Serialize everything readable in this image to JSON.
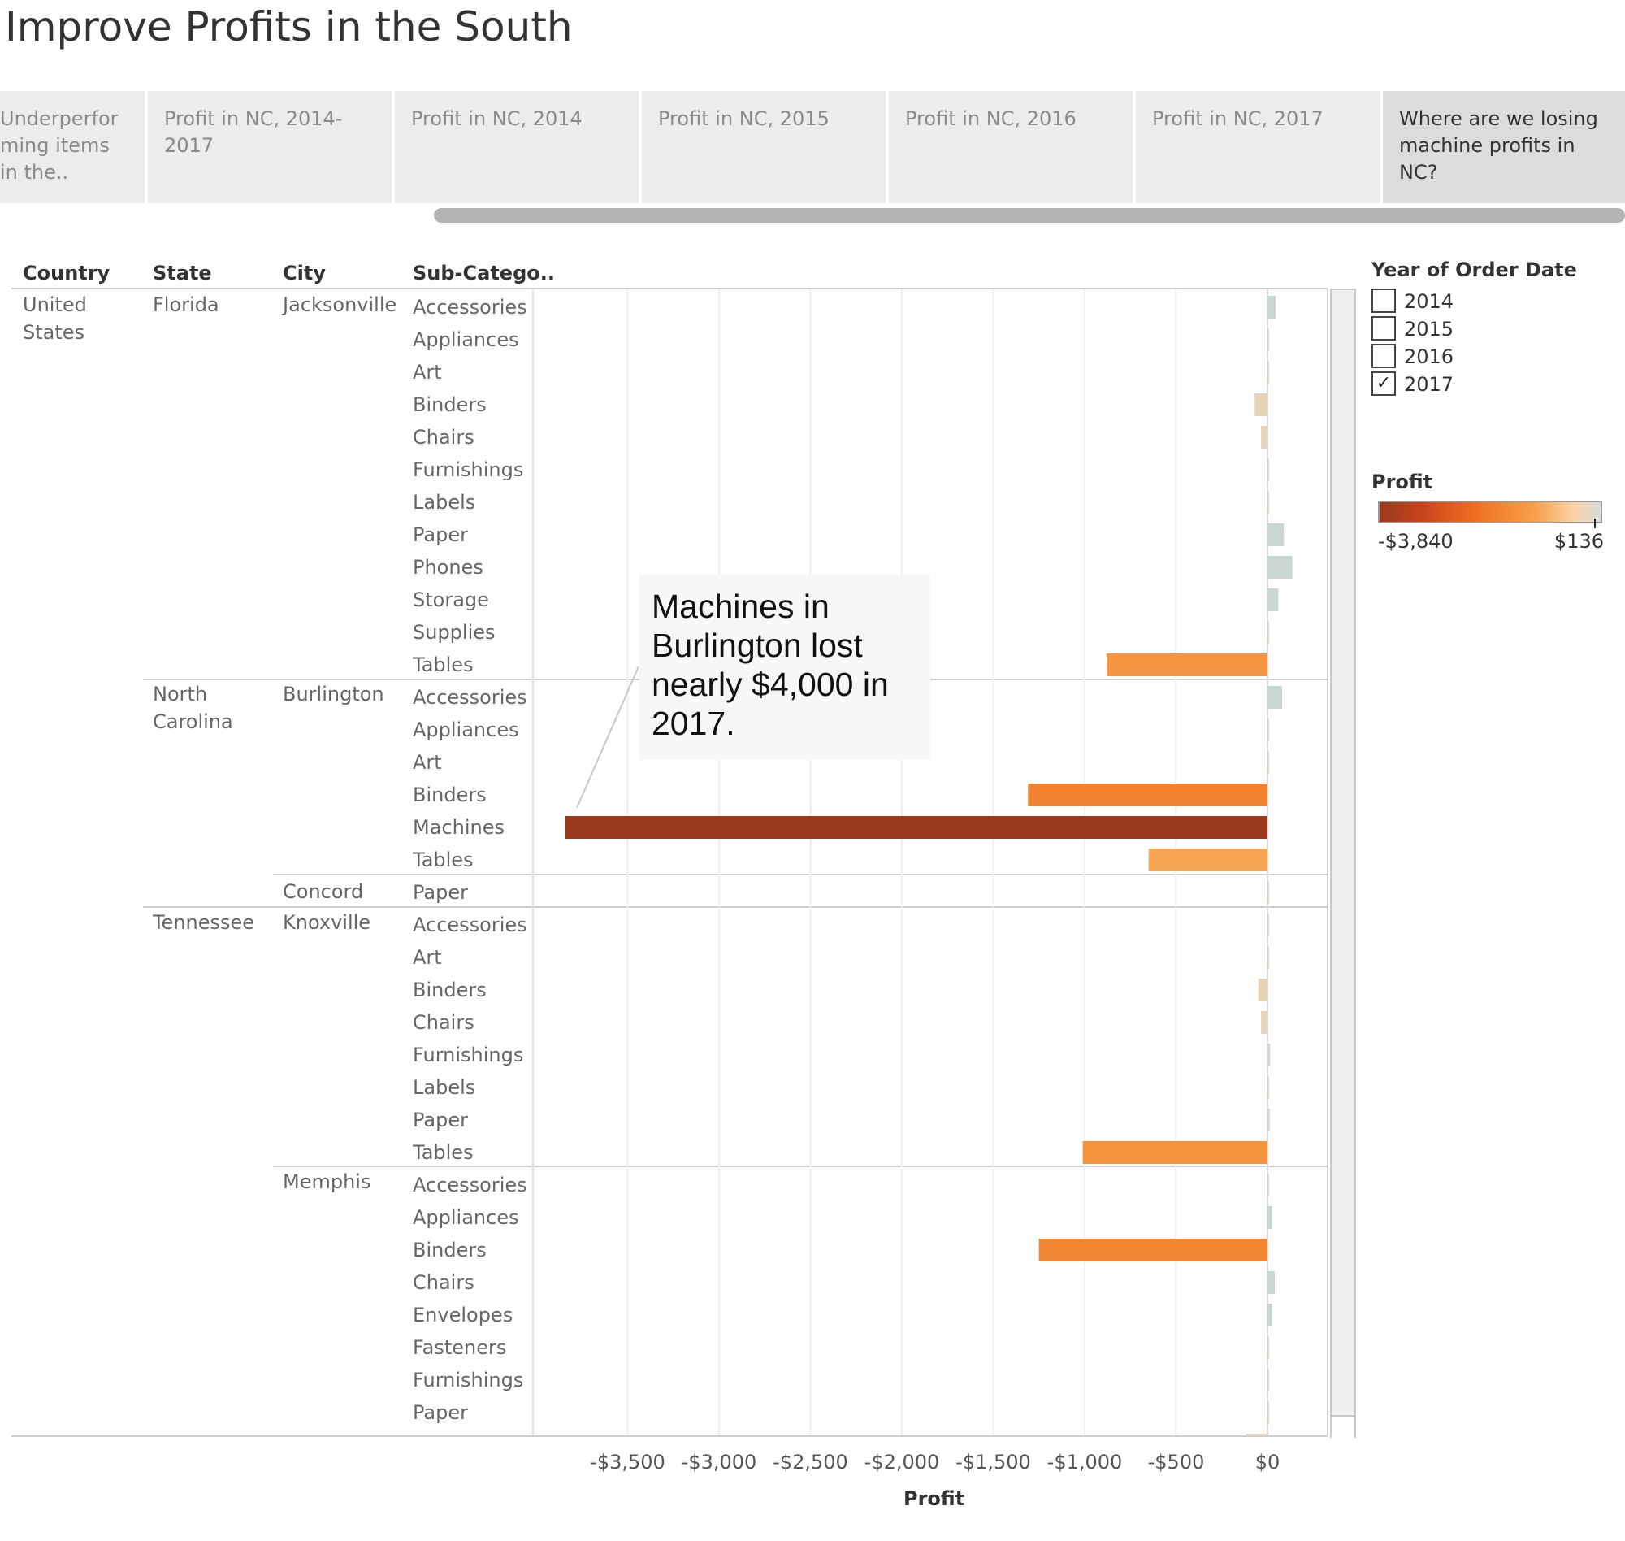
{
  "title": "Improve Profits in the South",
  "story_tabs": [
    {
      "label": "Underperfor ming items in the..",
      "active": false
    },
    {
      "label": "Profit in NC, 2014-2017",
      "active": false
    },
    {
      "label": "Profit in NC, 2014",
      "active": false
    },
    {
      "label": "Profit in NC, 2015",
      "active": false
    },
    {
      "label": "Profit in NC, 2016",
      "active": false
    },
    {
      "label": "Profit in NC, 2017",
      "active": false
    },
    {
      "label": "Where are we losing machine profits in NC?",
      "active": true
    }
  ],
  "table_headers": {
    "country": "Country",
    "state": "State",
    "city": "City",
    "subcategory": "Sub-Catego.."
  },
  "dimensions": {
    "country": "United States",
    "states": [
      {
        "name": "Florida",
        "cities": [
          {
            "name": "Jacksonville"
          }
        ]
      },
      {
        "name": "North Carolina",
        "cities": [
          {
            "name": "Burlington"
          },
          {
            "name": "Concord"
          }
        ]
      },
      {
        "name": "Tennessee",
        "cities": [
          {
            "name": "Knoxville"
          },
          {
            "name": "Memphis"
          }
        ]
      }
    ]
  },
  "annotation": "Machines in Burlington lost nearly $4,000 in 2017.",
  "filter": {
    "title": "Year of Order Date",
    "options": [
      {
        "label": "2014",
        "checked": false
      },
      {
        "label": "2015",
        "checked": false
      },
      {
        "label": "2016",
        "checked": false
      },
      {
        "label": "2017",
        "checked": true
      }
    ],
    "check_mark": "✓"
  },
  "legend": {
    "title": "Profit",
    "min_label": "-$3,840",
    "max_label": "$136",
    "min_color": "#9b3a1c",
    "max_color": "#d6ddd9"
  },
  "chart_data": {
    "type": "bar",
    "orientation": "horizontal",
    "xlabel": "Profit",
    "xlim": [
      -4000,
      330
    ],
    "x_ticks": [
      -3500,
      -3000,
      -2500,
      -2000,
      -1500,
      -1000,
      -500,
      0
    ],
    "x_tick_labels": [
      "-$3,500",
      "-$3,000",
      "-$2,500",
      "-$2,000",
      "-$1,500",
      "-$1,000",
      "-$500",
      "$0"
    ],
    "grid": true,
    "color_scale": {
      "min": -3840,
      "max": 136
    },
    "rows": [
      {
        "state": "Florida",
        "city": "Jacksonville",
        "subcategory": "Accessories",
        "value": 45
      },
      {
        "state": "Florida",
        "city": "Jacksonville",
        "subcategory": "Appliances",
        "value": 0
      },
      {
        "state": "Florida",
        "city": "Jacksonville",
        "subcategory": "Art",
        "value": 2
      },
      {
        "state": "Florida",
        "city": "Jacksonville",
        "subcategory": "Binders",
        "value": -70
      },
      {
        "state": "Florida",
        "city": "Jacksonville",
        "subcategory": "Chairs",
        "value": -35
      },
      {
        "state": "Florida",
        "city": "Jacksonville",
        "subcategory": "Furnishings",
        "value": 4
      },
      {
        "state": "Florida",
        "city": "Jacksonville",
        "subcategory": "Labels",
        "value": 3
      },
      {
        "state": "Florida",
        "city": "Jacksonville",
        "subcategory": "Paper",
        "value": 90
      },
      {
        "state": "Florida",
        "city": "Jacksonville",
        "subcategory": "Phones",
        "value": 136
      },
      {
        "state": "Florida",
        "city": "Jacksonville",
        "subcategory": "Storage",
        "value": 60
      },
      {
        "state": "Florida",
        "city": "Jacksonville",
        "subcategory": "Supplies",
        "value": 3
      },
      {
        "state": "Florida",
        "city": "Jacksonville",
        "subcategory": "Tables",
        "value": -880
      },
      {
        "state": "North Carolina",
        "city": "Burlington",
        "subcategory": "Accessories",
        "value": 80
      },
      {
        "state": "North Carolina",
        "city": "Burlington",
        "subcategory": "Appliances",
        "value": 0
      },
      {
        "state": "North Carolina",
        "city": "Burlington",
        "subcategory": "Art",
        "value": 2
      },
      {
        "state": "North Carolina",
        "city": "Burlington",
        "subcategory": "Binders",
        "value": -1310
      },
      {
        "state": "North Carolina",
        "city": "Burlington",
        "subcategory": "Machines",
        "value": -3840
      },
      {
        "state": "North Carolina",
        "city": "Burlington",
        "subcategory": "Tables",
        "value": -650
      },
      {
        "state": "North Carolina",
        "city": "Concord",
        "subcategory": "Paper",
        "value": 3
      },
      {
        "state": "Tennessee",
        "city": "Knoxville",
        "subcategory": "Accessories",
        "value": 2
      },
      {
        "state": "Tennessee",
        "city": "Knoxville",
        "subcategory": "Art",
        "value": 2
      },
      {
        "state": "Tennessee",
        "city": "Knoxville",
        "subcategory": "Binders",
        "value": -50
      },
      {
        "state": "Tennessee",
        "city": "Knoxville",
        "subcategory": "Chairs",
        "value": -35
      },
      {
        "state": "Tennessee",
        "city": "Knoxville",
        "subcategory": "Furnishings",
        "value": 15
      },
      {
        "state": "Tennessee",
        "city": "Knoxville",
        "subcategory": "Labels",
        "value": 2
      },
      {
        "state": "Tennessee",
        "city": "Knoxville",
        "subcategory": "Paper",
        "value": 12
      },
      {
        "state": "Tennessee",
        "city": "Knoxville",
        "subcategory": "Tables",
        "value": -1010
      },
      {
        "state": "Tennessee",
        "city": "Memphis",
        "subcategory": "Accessories",
        "value": 2
      },
      {
        "state": "Tennessee",
        "city": "Memphis",
        "subcategory": "Appliances",
        "value": 25
      },
      {
        "state": "Tennessee",
        "city": "Memphis",
        "subcategory": "Binders",
        "value": -1250
      },
      {
        "state": "Tennessee",
        "city": "Memphis",
        "subcategory": "Chairs",
        "value": 40
      },
      {
        "state": "Tennessee",
        "city": "Memphis",
        "subcategory": "Envelopes",
        "value": 25
      },
      {
        "state": "Tennessee",
        "city": "Memphis",
        "subcategory": "Fasteners",
        "value": 2
      },
      {
        "state": "Tennessee",
        "city": "Memphis",
        "subcategory": "Furnishings",
        "value": 3
      },
      {
        "state": "Tennessee",
        "city": "Memphis",
        "subcategory": "Paper",
        "value": 3
      },
      {
        "state": "Tennessee",
        "city": "Memphis",
        "subcategory": "",
        "value": -120
      }
    ]
  }
}
